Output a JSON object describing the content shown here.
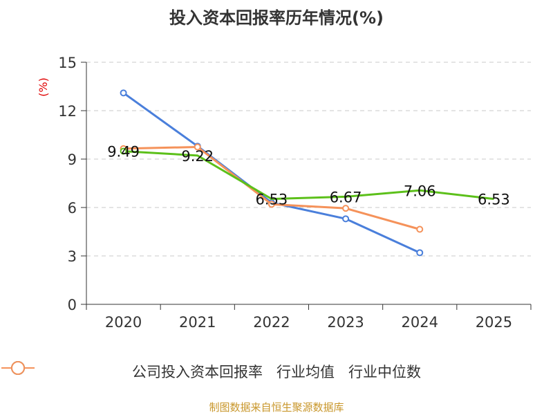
{
  "chart_data": {
    "type": "line",
    "title": "投入资本回报率历年情况(%)",
    "ylabel": "(%)",
    "xlabel": "",
    "categories": [
      "2020",
      "2021",
      "2022",
      "2023",
      "2024",
      "2025"
    ],
    "ylim": [
      0,
      15
    ],
    "yticks": [
      0,
      3,
      6,
      9,
      12,
      15
    ],
    "grid": true,
    "legend_position": "bottom",
    "series": [
      {
        "name": "公司投入资本回报率",
        "color": "#5cc01a",
        "values": [
          9.49,
          9.22,
          6.53,
          6.67,
          7.06,
          6.53
        ],
        "labels": true
      },
      {
        "name": "行业均值",
        "color": "#4a7fdb",
        "values": [
          13.1,
          9.8,
          6.3,
          5.3,
          3.2,
          null
        ],
        "labels": false
      },
      {
        "name": "行业中位数",
        "color": "#f5925a",
        "values": [
          9.65,
          9.75,
          6.2,
          5.95,
          4.65,
          null
        ],
        "labels": false
      }
    ]
  },
  "source": "制图数据来自恒生聚源数据库"
}
